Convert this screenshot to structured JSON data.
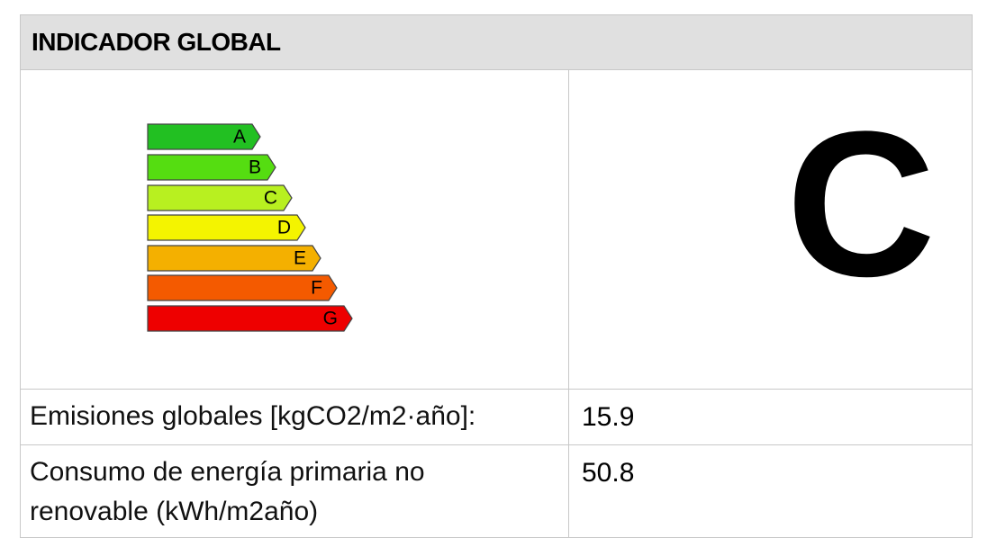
{
  "header": {
    "title": "INDICADOR GLOBAL"
  },
  "scale": {
    "labels": [
      "A",
      "B",
      "C",
      "D",
      "E",
      "F",
      "G"
    ]
  },
  "rating": "C",
  "rows": [
    {
      "label": "Emisiones globales [kgCO2/m2·año]:",
      "value": 15.9
    },
    {
      "label": "Consumo de energía primaria no renovable (kWh/m2año)",
      "value": 50.8
    }
  ]
}
